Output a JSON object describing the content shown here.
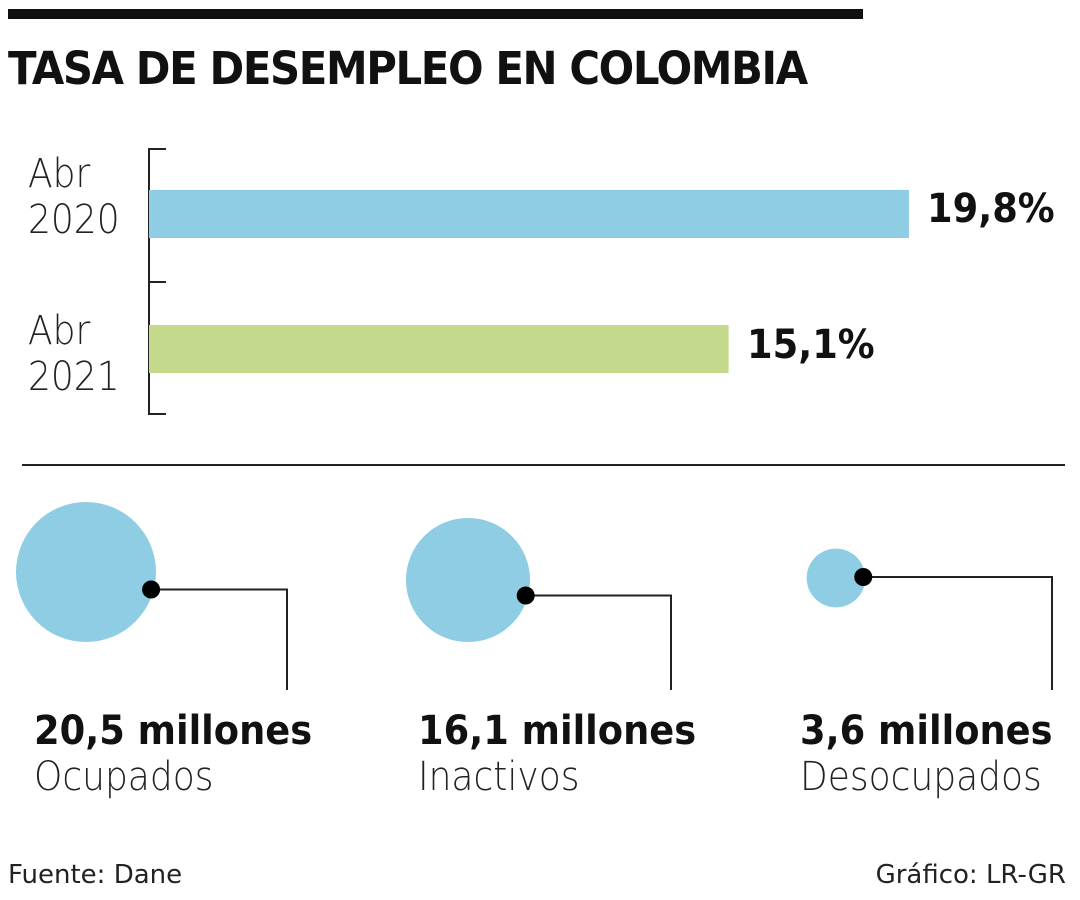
{
  "chart_data": [
    {
      "type": "bar",
      "orientation": "horizontal",
      "title": "TASA DE DESEMPLEO EN COLOMBIA",
      "categories": [
        "Abr 2020",
        "Abr 2021"
      ],
      "category_lines": [
        [
          "Abr",
          "2020"
        ],
        [
          "Abr",
          "2021"
        ]
      ],
      "values": [
        19.8,
        15.1
      ],
      "value_labels": [
        "19,8%",
        "15,1%"
      ],
      "colors": [
        "#8ecde3",
        "#c5d98c"
      ],
      "grid": false
    },
    {
      "type": "bubble",
      "items": [
        {
          "value": 20.5,
          "value_label": "20,5 millones",
          "label": "Ocupados"
        },
        {
          "value": 16.1,
          "value_label": "16,1 millones",
          "label": "Inactivos"
        },
        {
          "value": 3.6,
          "value_label": "3,6 millones",
          "label": "Desocupados"
        }
      ],
      "color": "#8ecde3"
    }
  ],
  "footer": {
    "source": "Fuente: Dane",
    "credit": "Gráfico: LR-GR"
  }
}
